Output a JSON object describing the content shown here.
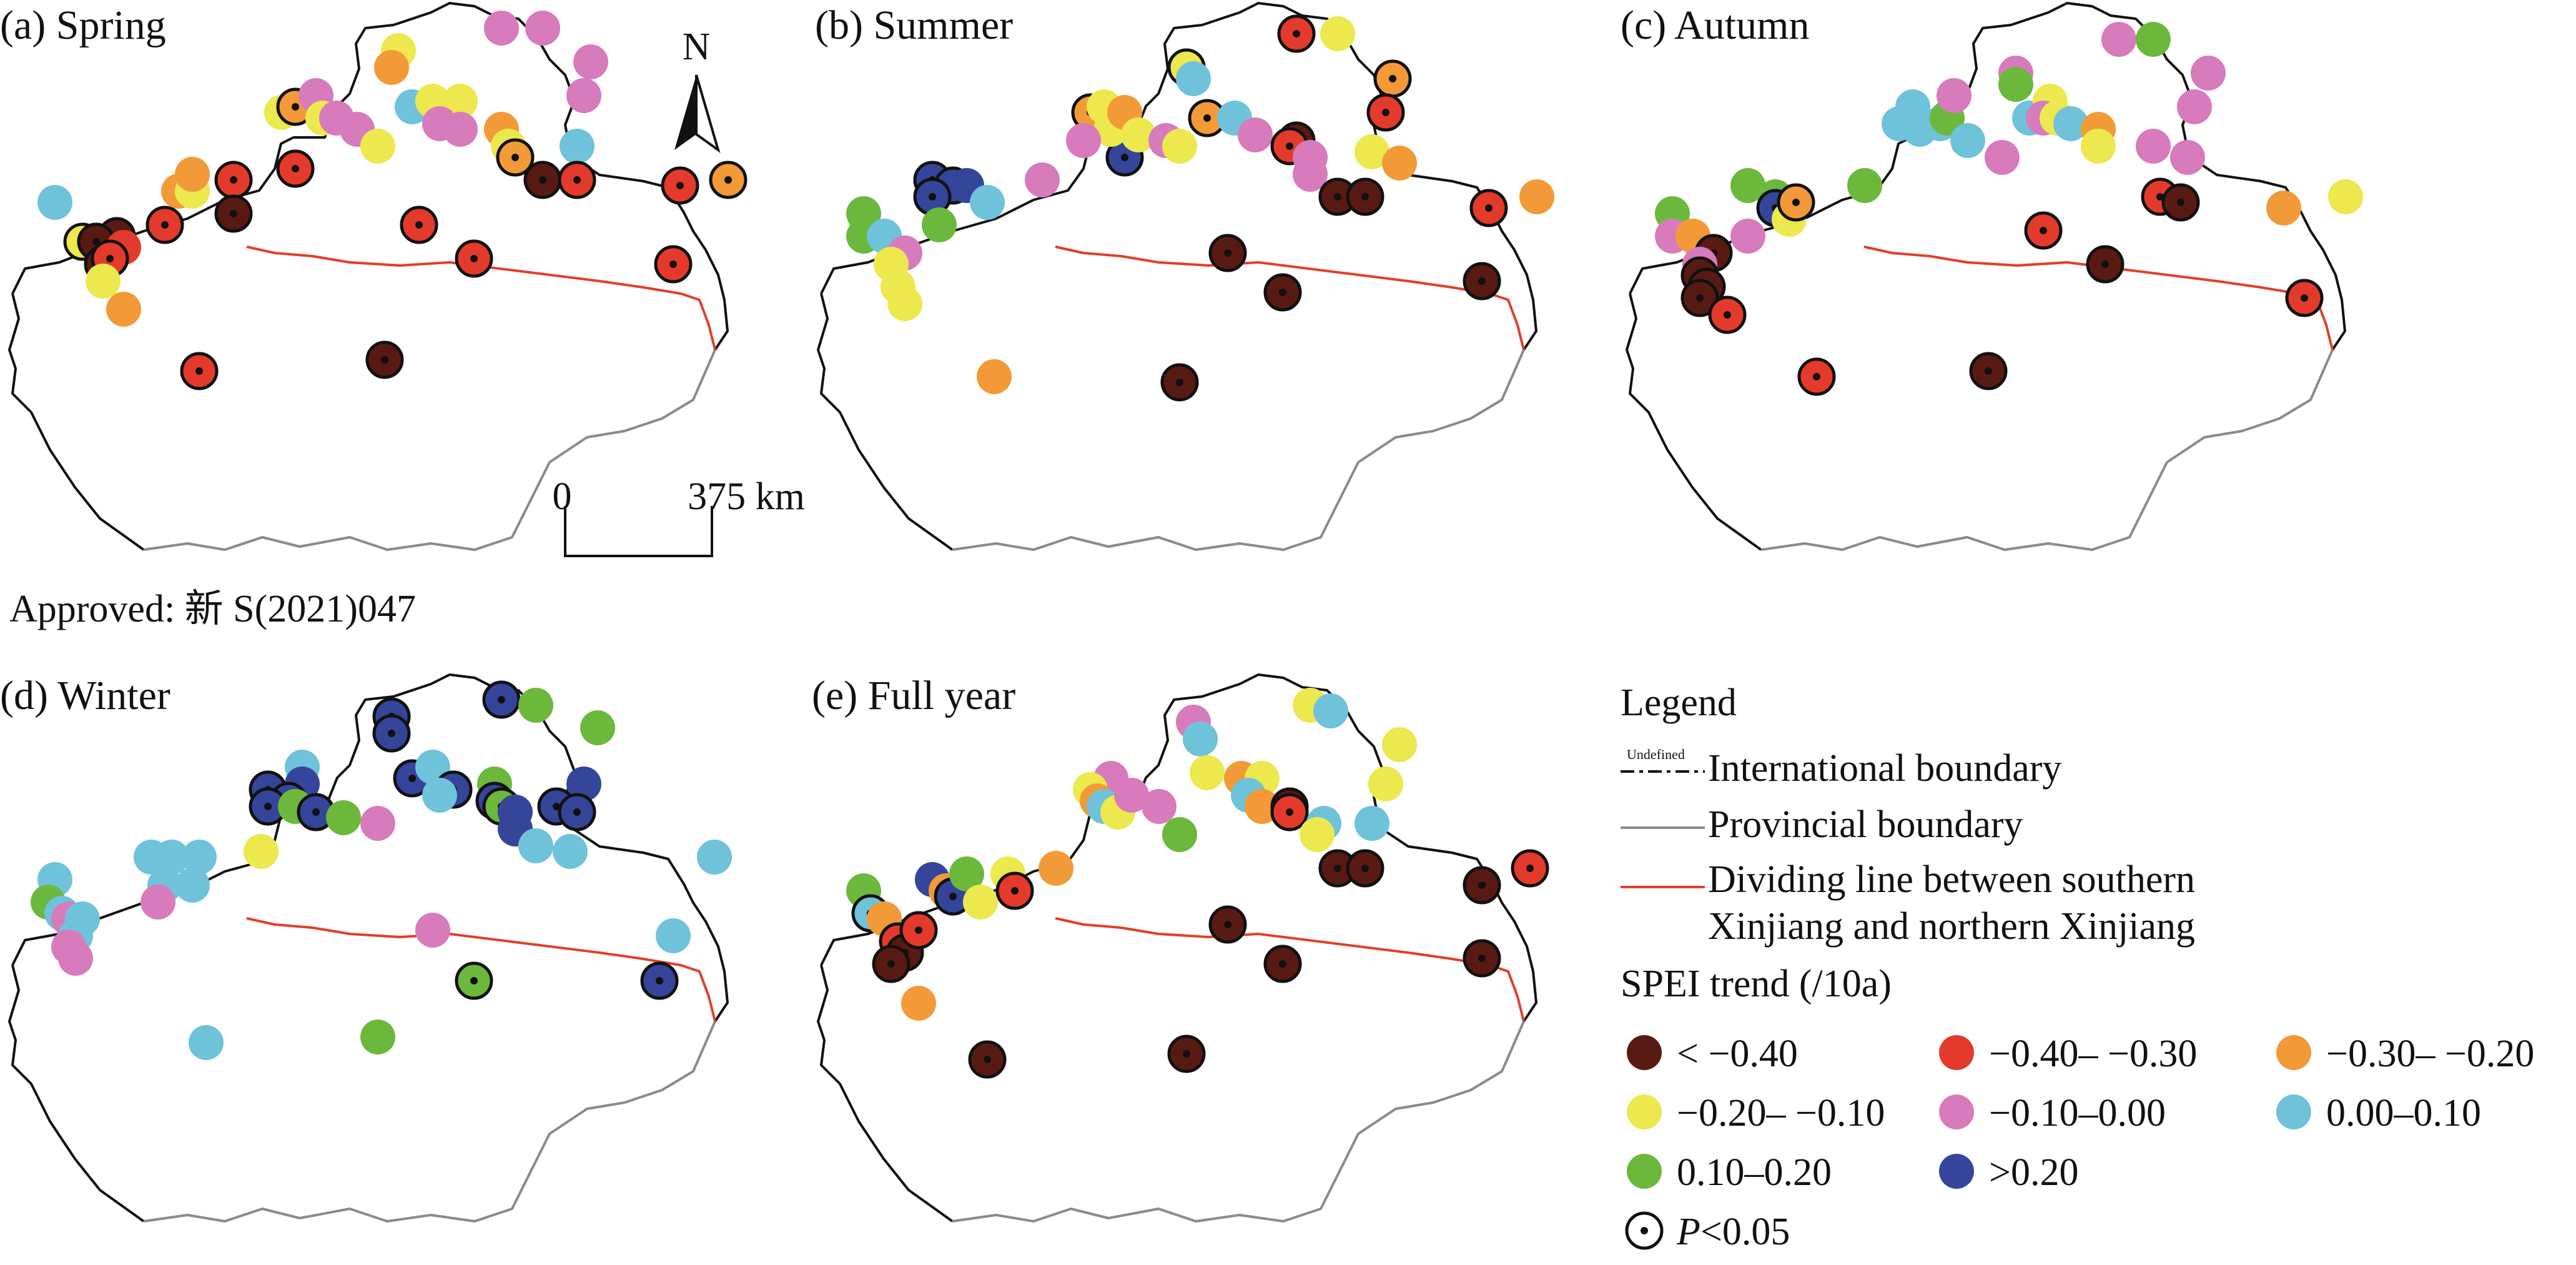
{
  "figure": {
    "panels": [
      {
        "id": "spring",
        "title": "(a) Spring"
      },
      {
        "id": "summer",
        "title": "(b) Summer"
      },
      {
        "id": "autumn",
        "title": "(c) Autumn"
      },
      {
        "id": "winter",
        "title": "(d) Winter"
      },
      {
        "id": "fullyear",
        "title": "(e) Full year"
      }
    ],
    "north_arrow_label": "N",
    "scale_bar": {
      "start": "0",
      "end": "375 km"
    },
    "approval": "Approved: 新 S(2021)047"
  },
  "legend": {
    "title": "Legend",
    "lines": {
      "undefined_tag": "Undefined",
      "international": "International boundary",
      "provincial": "Provincial boundary",
      "divider_line1": "Dividing line between southern",
      "divider_line2": "Xinjiang and northern Xinjiang"
    },
    "spei_title": "SPEI trend (/10a)",
    "classes": [
      {
        "key": "c1",
        "label": "< −0.40",
        "color": "#5a1a14"
      },
      {
        "key": "c2",
        "label": "−0.40– −0.30",
        "color": "#e43a2c"
      },
      {
        "key": "c3",
        "label": "−0.30– −0.20",
        "color": "#f39a38"
      },
      {
        "key": "c4",
        "label": "−0.20– −0.10",
        "color": "#ece84e"
      },
      {
        "key": "c5",
        "label": "−0.10–0.00",
        "color": "#d77bbd"
      },
      {
        "key": "c6",
        "label": "0.00–0.10",
        "color": "#6ec3da"
      },
      {
        "key": "c7",
        "label": "0.10–0.20",
        "color": "#6cb83c"
      },
      {
        "key": "c8",
        "label": ">0.20",
        "color": "#34459a"
      }
    ],
    "sig_label_prefix": "P",
    "sig_label_suffix": "<0.05"
  },
  "stations": {
    "spring": [
      [
        "c6",
        0.08,
        0.36,
        0
      ],
      [
        "c1",
        0.17,
        0.42,
        1
      ],
      [
        "c4",
        0.12,
        0.43,
        1
      ],
      [
        "c1",
        0.14,
        0.43,
        1
      ],
      [
        "c2",
        0.18,
        0.44,
        0
      ],
      [
        "c1",
        0.15,
        0.47,
        1
      ],
      [
        "c2",
        0.16,
        0.46,
        1
      ],
      [
        "c4",
        0.15,
        0.5,
        0
      ],
      [
        "c3",
        0.18,
        0.55,
        0
      ],
      [
        "c3",
        0.26,
        0.34,
        0
      ],
      [
        "c4",
        0.28,
        0.34,
        0
      ],
      [
        "c3",
        0.28,
        0.31,
        0
      ],
      [
        "c2",
        0.34,
        0.32,
        1
      ],
      [
        "c1",
        0.34,
        0.38,
        1
      ],
      [
        "c2",
        0.24,
        0.4,
        1
      ],
      [
        "c2",
        0.43,
        0.3,
        1
      ],
      [
        "c4",
        0.41,
        0.2,
        0
      ],
      [
        "c3",
        0.43,
        0.19,
        1
      ],
      [
        "c5",
        0.46,
        0.17,
        0
      ],
      [
        "c4",
        0.47,
        0.21,
        0
      ],
      [
        "c5",
        0.49,
        0.21,
        0
      ],
      [
        "c5",
        0.52,
        0.23,
        0
      ],
      [
        "c4",
        0.55,
        0.26,
        0
      ],
      [
        "c4",
        0.58,
        0.09,
        0
      ],
      [
        "c3",
        0.57,
        0.12,
        0
      ],
      [
        "c5",
        0.73,
        0.05,
        0
      ],
      [
        "c5",
        0.79,
        0.05,
        0
      ],
      [
        "c5",
        0.86,
        0.11,
        0
      ],
      [
        "c5",
        0.85,
        0.17,
        0
      ],
      [
        "c6",
        0.6,
        0.19,
        0
      ],
      [
        "c4",
        0.63,
        0.18,
        0
      ],
      [
        "c4",
        0.67,
        0.18,
        0
      ],
      [
        "c5",
        0.64,
        0.22,
        0
      ],
      [
        "c5",
        0.67,
        0.23,
        0
      ],
      [
        "c3",
        0.73,
        0.23,
        0
      ],
      [
        "c4",
        0.74,
        0.26,
        0
      ],
      [
        "c3",
        0.75,
        0.28,
        1
      ],
      [
        "c6",
        0.84,
        0.26,
        0
      ],
      [
        "c1",
        0.79,
        0.32,
        1
      ],
      [
        "c2",
        0.84,
        0.32,
        1
      ],
      [
        "c2",
        0.61,
        0.4,
        1
      ],
      [
        "c2",
        0.69,
        0.46,
        1
      ],
      [
        "c2",
        0.98,
        0.47,
        1
      ],
      [
        "c2",
        0.99,
        0.33,
        1
      ],
      [
        "c3",
        1.06,
        0.32,
        1
      ],
      [
        "c2",
        0.29,
        0.66,
        1
      ],
      [
        "c1",
        0.56,
        0.64,
        1
      ]
    ],
    "summer": [
      [
        "c7",
        0.08,
        0.38,
        0
      ],
      [
        "c7",
        0.08,
        0.42,
        0
      ],
      [
        "c6",
        0.11,
        0.42,
        0
      ],
      [
        "c5",
        0.14,
        0.45,
        0
      ],
      [
        "c4",
        0.12,
        0.47,
        0
      ],
      [
        "c4",
        0.13,
        0.51,
        0
      ],
      [
        "c4",
        0.14,
        0.54,
        0
      ],
      [
        "c3",
        0.27,
        0.67,
        0
      ],
      [
        "c8",
        0.18,
        0.32,
        1
      ],
      [
        "c8",
        0.21,
        0.33,
        1
      ],
      [
        "c8",
        0.18,
        0.35,
        1
      ],
      [
        "c8",
        0.23,
        0.33,
        0
      ],
      [
        "c6",
        0.26,
        0.36,
        0
      ],
      [
        "c7",
        0.19,
        0.4,
        0
      ],
      [
        "c5",
        0.34,
        0.32,
        0
      ],
      [
        "c8",
        0.46,
        0.28,
        1
      ],
      [
        "c3",
        0.41,
        0.2,
        1
      ],
      [
        "c4",
        0.43,
        0.19,
        0
      ],
      [
        "c4",
        0.44,
        0.23,
        0
      ],
      [
        "c5",
        0.4,
        0.25,
        0
      ],
      [
        "c3",
        0.46,
        0.2,
        0
      ],
      [
        "c4",
        0.48,
        0.24,
        0
      ],
      [
        "c5",
        0.52,
        0.25,
        0
      ],
      [
        "c4",
        0.54,
        0.26,
        0
      ],
      [
        "c2",
        0.71,
        0.06,
        1
      ],
      [
        "c4",
        0.77,
        0.06,
        0
      ],
      [
        "c4",
        0.55,
        0.12,
        1
      ],
      [
        "c6",
        0.56,
        0.14,
        0
      ],
      [
        "c3",
        0.85,
        0.14,
        1
      ],
      [
        "c2",
        0.84,
        0.2,
        1
      ],
      [
        "c3",
        0.58,
        0.21,
        1
      ],
      [
        "c6",
        0.62,
        0.21,
        0
      ],
      [
        "c5",
        0.65,
        0.24,
        0
      ],
      [
        "c1",
        0.71,
        0.25,
        1
      ],
      [
        "c2",
        0.7,
        0.26,
        1
      ],
      [
        "c5",
        0.73,
        0.28,
        0
      ],
      [
        "c5",
        0.73,
        0.31,
        0
      ],
      [
        "c4",
        0.82,
        0.27,
        0
      ],
      [
        "c3",
        0.86,
        0.29,
        0
      ],
      [
        "c1",
        0.77,
        0.35,
        1
      ],
      [
        "c1",
        0.81,
        0.35,
        1
      ],
      [
        "c2",
        0.99,
        0.37,
        1
      ],
      [
        "c3",
        1.06,
        0.35,
        0
      ],
      [
        "c1",
        0.61,
        0.45,
        1
      ],
      [
        "c1",
        0.69,
        0.52,
        1
      ],
      [
        "c1",
        0.98,
        0.5,
        1
      ],
      [
        "c1",
        0.54,
        0.68,
        1
      ]
    ],
    "autumn": [
      [
        "c7",
        0.08,
        0.38,
        0
      ],
      [
        "c5",
        0.08,
        0.42,
        0
      ],
      [
        "c3",
        0.11,
        0.42,
        0
      ],
      [
        "c1",
        0.14,
        0.45,
        1
      ],
      [
        "c5",
        0.12,
        0.47,
        0
      ],
      [
        "c1",
        0.12,
        0.49,
        1
      ],
      [
        "c1",
        0.13,
        0.51,
        1
      ],
      [
        "c1",
        0.12,
        0.53,
        1
      ],
      [
        "c2",
        0.16,
        0.56,
        1
      ],
      [
        "c7",
        0.19,
        0.33,
        0
      ],
      [
        "c7",
        0.23,
        0.35,
        0
      ],
      [
        "c5",
        0.19,
        0.42,
        0
      ],
      [
        "c8",
        0.23,
        0.37,
        1
      ],
      [
        "c4",
        0.25,
        0.39,
        0
      ],
      [
        "c3",
        0.26,
        0.36,
        1
      ],
      [
        "c7",
        0.36,
        0.33,
        0
      ],
      [
        "c6",
        0.41,
        0.22,
        0
      ],
      [
        "c6",
        0.43,
        0.19,
        0
      ],
      [
        "c6",
        0.44,
        0.23,
        0
      ],
      [
        "c6",
        0.47,
        0.22,
        0
      ],
      [
        "c7",
        0.48,
        0.21,
        0
      ],
      [
        "c5",
        0.49,
        0.17,
        0
      ],
      [
        "c6",
        0.51,
        0.25,
        0
      ],
      [
        "c5",
        0.56,
        0.28,
        0
      ],
      [
        "c5",
        0.58,
        0.13,
        0
      ],
      [
        "c7",
        0.58,
        0.15,
        0
      ],
      [
        "c5",
        0.73,
        0.07,
        0
      ],
      [
        "c7",
        0.78,
        0.07,
        0
      ],
      [
        "c5",
        0.86,
        0.13,
        0
      ],
      [
        "c5",
        0.84,
        0.19,
        0
      ],
      [
        "c6",
        0.6,
        0.21,
        0
      ],
      [
        "c4",
        0.63,
        0.18,
        0
      ],
      [
        "c5",
        0.62,
        0.21,
        0
      ],
      [
        "c4",
        0.64,
        0.21,
        0
      ],
      [
        "c6",
        0.66,
        0.22,
        0
      ],
      [
        "c3",
        0.7,
        0.23,
        0
      ],
      [
        "c4",
        0.7,
        0.26,
        0
      ],
      [
        "c5",
        0.78,
        0.26,
        0
      ],
      [
        "c5",
        0.83,
        0.28,
        0
      ],
      [
        "c2",
        0.79,
        0.35,
        1
      ],
      [
        "c1",
        0.82,
        0.36,
        1
      ],
      [
        "c2",
        0.62,
        0.41,
        1
      ],
      [
        "c1",
        0.71,
        0.47,
        1
      ],
      [
        "c3",
        0.97,
        0.37,
        0
      ],
      [
        "c4",
        1.06,
        0.35,
        0
      ],
      [
        "c2",
        1.0,
        0.53,
        1
      ],
      [
        "c2",
        0.29,
        0.67,
        1
      ],
      [
        "c1",
        0.54,
        0.66,
        1
      ]
    ],
    "winter": [
      [
        "c6",
        0.08,
        0.37,
        0
      ],
      [
        "c7",
        0.07,
        0.41,
        0
      ],
      [
        "c6",
        0.09,
        0.43,
        0
      ],
      [
        "c5",
        0.1,
        0.44,
        0
      ],
      [
        "c6",
        0.12,
        0.44,
        0
      ],
      [
        "c6",
        0.11,
        0.47,
        0
      ],
      [
        "c5",
        0.1,
        0.49,
        0
      ],
      [
        "c5",
        0.11,
        0.51,
        0
      ],
      [
        "c6",
        0.22,
        0.33,
        0
      ],
      [
        "c6",
        0.25,
        0.33,
        0
      ],
      [
        "c6",
        0.29,
        0.33,
        0
      ],
      [
        "c6",
        0.24,
        0.38,
        0
      ],
      [
        "c6",
        0.28,
        0.38,
        0
      ],
      [
        "c5",
        0.23,
        0.41,
        0
      ],
      [
        "c6",
        0.3,
        0.66,
        0
      ],
      [
        "c4",
        0.38,
        0.32,
        0
      ],
      [
        "c6",
        0.44,
        0.17,
        0
      ],
      [
        "c8",
        0.39,
        0.21,
        1
      ],
      [
        "c8",
        0.44,
        0.2,
        0
      ],
      [
        "c8",
        0.42,
        0.23,
        1
      ],
      [
        "c8",
        0.39,
        0.24,
        1
      ],
      [
        "c7",
        0.43,
        0.24,
        0
      ],
      [
        "c8",
        0.46,
        0.25,
        1
      ],
      [
        "c7",
        0.5,
        0.26,
        0
      ],
      [
        "c8",
        0.57,
        0.08,
        1
      ],
      [
        "c8",
        0.57,
        0.11,
        1
      ],
      [
        "c8",
        0.73,
        0.05,
        1
      ],
      [
        "c7",
        0.78,
        0.06,
        0
      ],
      [
        "c7",
        0.87,
        0.1,
        0
      ],
      [
        "c8",
        0.85,
        0.2,
        0
      ],
      [
        "c8",
        0.6,
        0.19,
        1
      ],
      [
        "c6",
        0.63,
        0.17,
        0
      ],
      [
        "c8",
        0.66,
        0.21,
        1
      ],
      [
        "c6",
        0.64,
        0.22,
        0
      ],
      [
        "c7",
        0.72,
        0.2,
        0
      ],
      [
        "c8",
        0.72,
        0.23,
        1
      ],
      [
        "c7",
        0.73,
        0.24,
        1
      ],
      [
        "c8",
        0.75,
        0.25,
        0
      ],
      [
        "c8",
        0.81,
        0.24,
        1
      ],
      [
        "c8",
        0.84,
        0.25,
        1
      ],
      [
        "c8",
        0.75,
        0.28,
        0
      ],
      [
        "c6",
        0.78,
        0.31,
        0
      ],
      [
        "c6",
        0.83,
        0.32,
        0
      ],
      [
        "c5",
        0.55,
        0.27,
        0
      ],
      [
        "c5",
        0.63,
        0.46,
        0
      ],
      [
        "c7",
        0.69,
        0.55,
        1
      ],
      [
        "c6",
        0.98,
        0.47,
        0
      ],
      [
        "c6",
        1.04,
        0.33,
        0
      ],
      [
        "c8",
        0.96,
        0.55,
        1
      ],
      [
        "c7",
        0.55,
        0.65,
        0
      ]
    ],
    "fullyear": [
      [
        "c7",
        0.08,
        0.39,
        0
      ],
      [
        "c6",
        0.09,
        0.43,
        1
      ],
      [
        "c3",
        0.11,
        0.44,
        0
      ],
      [
        "c2",
        0.13,
        0.48,
        1
      ],
      [
        "c1",
        0.14,
        0.5,
        1
      ],
      [
        "c1",
        0.12,
        0.52,
        1
      ],
      [
        "c2",
        0.16,
        0.46,
        1
      ],
      [
        "c3",
        0.16,
        0.59,
        0
      ],
      [
        "c8",
        0.18,
        0.37,
        0
      ],
      [
        "c3",
        0.2,
        0.39,
        0
      ],
      [
        "c8",
        0.21,
        0.4,
        1
      ],
      [
        "c7",
        0.23,
        0.36,
        0
      ],
      [
        "c4",
        0.25,
        0.41,
        0
      ],
      [
        "c4",
        0.29,
        0.36,
        0
      ],
      [
        "c2",
        0.3,
        0.39,
        1
      ],
      [
        "c3",
        0.36,
        0.35,
        0
      ],
      [
        "c5",
        0.44,
        0.19,
        0
      ],
      [
        "c4",
        0.41,
        0.21,
        0
      ],
      [
        "c3",
        0.42,
        0.23,
        0
      ],
      [
        "c6",
        0.43,
        0.24,
        0
      ],
      [
        "c4",
        0.45,
        0.25,
        0
      ],
      [
        "c5",
        0.47,
        0.22,
        0
      ],
      [
        "c5",
        0.51,
        0.24,
        0
      ],
      [
        "c7",
        0.54,
        0.29,
        0
      ],
      [
        "c5",
        0.56,
        0.09,
        0
      ],
      [
        "c6",
        0.57,
        0.12,
        0
      ],
      [
        "c4",
        0.58,
        0.18,
        0
      ],
      [
        "c4",
        0.73,
        0.06,
        0
      ],
      [
        "c6",
        0.76,
        0.07,
        0
      ],
      [
        "c4",
        0.86,
        0.13,
        0
      ],
      [
        "c4",
        0.84,
        0.2,
        0
      ],
      [
        "c3",
        0.63,
        0.19,
        0
      ],
      [
        "c4",
        0.66,
        0.19,
        0
      ],
      [
        "c6",
        0.64,
        0.22,
        0
      ],
      [
        "c3",
        0.66,
        0.24,
        0
      ],
      [
        "c1",
        0.7,
        0.24,
        1
      ],
      [
        "c2",
        0.7,
        0.25,
        1
      ],
      [
        "c6",
        0.75,
        0.27,
        0
      ],
      [
        "c4",
        0.74,
        0.29,
        0
      ],
      [
        "c6",
        0.82,
        0.27,
        0
      ],
      [
        "c1",
        0.77,
        0.35,
        1
      ],
      [
        "c1",
        0.81,
        0.35,
        1
      ],
      [
        "c1",
        0.98,
        0.38,
        1
      ],
      [
        "c2",
        1.05,
        0.35,
        1
      ],
      [
        "c1",
        0.61,
        0.45,
        1
      ],
      [
        "c1",
        0.69,
        0.52,
        1
      ],
      [
        "c1",
        0.98,
        0.51,
        1
      ],
      [
        "c1",
        0.55,
        0.68,
        1
      ],
      [
        "c1",
        0.26,
        0.69,
        1
      ]
    ]
  }
}
